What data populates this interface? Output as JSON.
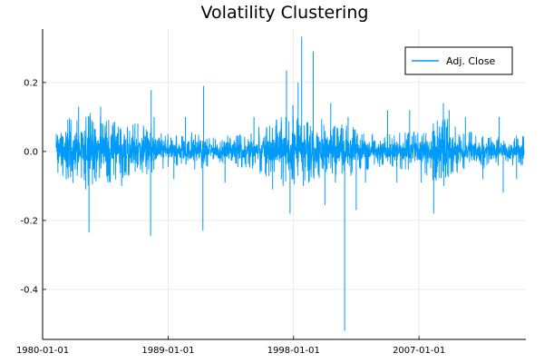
{
  "chart_data": {
    "type": "line",
    "title": "Volatility Clustering",
    "xlabel": "",
    "ylabel": "",
    "x_type": "date",
    "xlim": [
      "1980-01-01",
      "2014-09-01"
    ],
    "ylim": [
      -0.545,
      0.355
    ],
    "x_ticks": [
      "1980-01-01",
      "1989-01-01",
      "1998-01-01",
      "2007-01-01"
    ],
    "y_ticks": [
      0.2,
      0.0,
      -0.2,
      -0.4
    ],
    "y_tick_labels": [
      "0.2",
      "0.0",
      "-0.2",
      "-0.4"
    ],
    "grid": true,
    "legend_position": "top-right",
    "series": [
      {
        "name": "Adj. Close",
        "color": "#009af9",
        "x_start": "1980-12-15",
        "x_end": "2014-07-15",
        "envelope": [
          {
            "x": "1981-01-01",
            "upper": 0.09,
            "lower": -0.07
          },
          {
            "x": "1982-01-01",
            "upper": 0.08,
            "lower": -0.075
          },
          {
            "x": "1983-01-01",
            "upper": 0.1,
            "lower": -0.09
          },
          {
            "x": "1984-01-01",
            "upper": 0.09,
            "lower": -0.08
          },
          {
            "x": "1985-01-01",
            "upper": 0.08,
            "lower": -0.075
          },
          {
            "x": "1986-01-01",
            "upper": 0.07,
            "lower": -0.06
          },
          {
            "x": "1987-01-01",
            "upper": 0.07,
            "lower": -0.06
          },
          {
            "x": "1988-01-01",
            "upper": 0.06,
            "lower": -0.05
          },
          {
            "x": "1989-01-01",
            "upper": 0.05,
            "lower": -0.04
          },
          {
            "x": "1990-01-01",
            "upper": 0.045,
            "lower": -0.04
          },
          {
            "x": "1991-01-01",
            "upper": 0.05,
            "lower": -0.045
          },
          {
            "x": "1992-01-01",
            "upper": 0.04,
            "lower": -0.035
          },
          {
            "x": "1993-01-01",
            "upper": 0.04,
            "lower": -0.035
          },
          {
            "x": "1994-01-01",
            "upper": 0.045,
            "lower": -0.04
          },
          {
            "x": "1995-01-01",
            "upper": 0.05,
            "lower": -0.045
          },
          {
            "x": "1996-01-01",
            "upper": 0.07,
            "lower": -0.06
          },
          {
            "x": "1997-01-01",
            "upper": 0.09,
            "lower": -0.08
          },
          {
            "x": "1998-01-01",
            "upper": 0.09,
            "lower": -0.08
          },
          {
            "x": "1999-01-01",
            "upper": 0.08,
            "lower": -0.075
          },
          {
            "x": "2000-01-01",
            "upper": 0.08,
            "lower": -0.07
          },
          {
            "x": "2001-01-01",
            "upper": 0.075,
            "lower": -0.065
          },
          {
            "x": "2002-01-01",
            "upper": 0.065,
            "lower": -0.06
          },
          {
            "x": "2003-01-01",
            "upper": 0.055,
            "lower": -0.05
          },
          {
            "x": "2004-01-01",
            "upper": 0.045,
            "lower": -0.04
          },
          {
            "x": "2005-01-01",
            "upper": 0.045,
            "lower": -0.04
          },
          {
            "x": "2006-01-01",
            "upper": 0.05,
            "lower": -0.045
          },
          {
            "x": "2007-01-01",
            "upper": 0.05,
            "lower": -0.045
          },
          {
            "x": "2008-01-01",
            "upper": 0.075,
            "lower": -0.07
          },
          {
            "x": "2009-01-01",
            "upper": 0.08,
            "lower": -0.075
          },
          {
            "x": "2010-01-01",
            "upper": 0.05,
            "lower": -0.045
          },
          {
            "x": "2011-01-01",
            "upper": 0.05,
            "lower": -0.05
          },
          {
            "x": "2012-01-01",
            "upper": 0.045,
            "lower": -0.04
          },
          {
            "x": "2013-01-01",
            "upper": 0.04,
            "lower": -0.035
          },
          {
            "x": "2014-07-15",
            "upper": 0.04,
            "lower": -0.035
          }
        ],
        "spikes": [
          {
            "x": "1983-05-01",
            "y": -0.235
          },
          {
            "x": "1983-02-01",
            "y": -0.11
          },
          {
            "x": "1982-08-01",
            "y": 0.13
          },
          {
            "x": "1984-03-01",
            "y": 0.13
          },
          {
            "x": "1985-09-01",
            "y": -0.1
          },
          {
            "x": "1987-10-01",
            "y": -0.245
          },
          {
            "x": "1987-10-15",
            "y": 0.178
          },
          {
            "x": "1988-01-01",
            "y": 0.1
          },
          {
            "x": "1989-06-01",
            "y": -0.08
          },
          {
            "x": "1990-04-01",
            "y": 0.1
          },
          {
            "x": "1991-07-01",
            "y": -0.23
          },
          {
            "x": "1991-07-20",
            "y": 0.19
          },
          {
            "x": "1993-02-01",
            "y": -0.09
          },
          {
            "x": "1995-03-01",
            "y": 0.1
          },
          {
            "x": "1996-07-01",
            "y": -0.11
          },
          {
            "x": "1997-07-01",
            "y": 0.235
          },
          {
            "x": "1997-04-01",
            "y": -0.1
          },
          {
            "x": "1997-10-01",
            "y": -0.18
          },
          {
            "x": "1997-12-15",
            "y": 0.135
          },
          {
            "x": "1998-05-01",
            "y": 0.2
          },
          {
            "x": "1998-08-01",
            "y": 0.333
          },
          {
            "x": "1998-09-15",
            "y": -0.1
          },
          {
            "x": "1999-02-01",
            "y": -0.09
          },
          {
            "x": "1999-06-01",
            "y": 0.29
          },
          {
            "x": "2000-04-01",
            "y": -0.155
          },
          {
            "x": "2000-09-01",
            "y": 0.14
          },
          {
            "x": "2001-01-01",
            "y": -0.09
          },
          {
            "x": "2001-09-01",
            "y": -0.52
          },
          {
            "x": "2001-12-01",
            "y": 0.1
          },
          {
            "x": "2002-07-01",
            "y": -0.17
          },
          {
            "x": "2003-03-01",
            "y": -0.09
          },
          {
            "x": "2004-10-01",
            "y": 0.12
          },
          {
            "x": "2005-06-01",
            "y": -0.09
          },
          {
            "x": "2006-05-01",
            "y": 0.12
          },
          {
            "x": "2007-03-01",
            "y": -0.09
          },
          {
            "x": "2008-01-20",
            "y": -0.18
          },
          {
            "x": "2008-10-01",
            "y": 0.14
          },
          {
            "x": "2008-10-15",
            "y": -0.1
          },
          {
            "x": "2009-03-01",
            "y": 0.12
          },
          {
            "x": "2010-05-01",
            "y": 0.1
          },
          {
            "x": "2011-08-01",
            "y": -0.08
          },
          {
            "x": "2012-10-01",
            "y": 0.1
          },
          {
            "x": "2013-01-15",
            "y": -0.12
          },
          {
            "x": "2014-01-01",
            "y": -0.08
          }
        ]
      }
    ]
  }
}
